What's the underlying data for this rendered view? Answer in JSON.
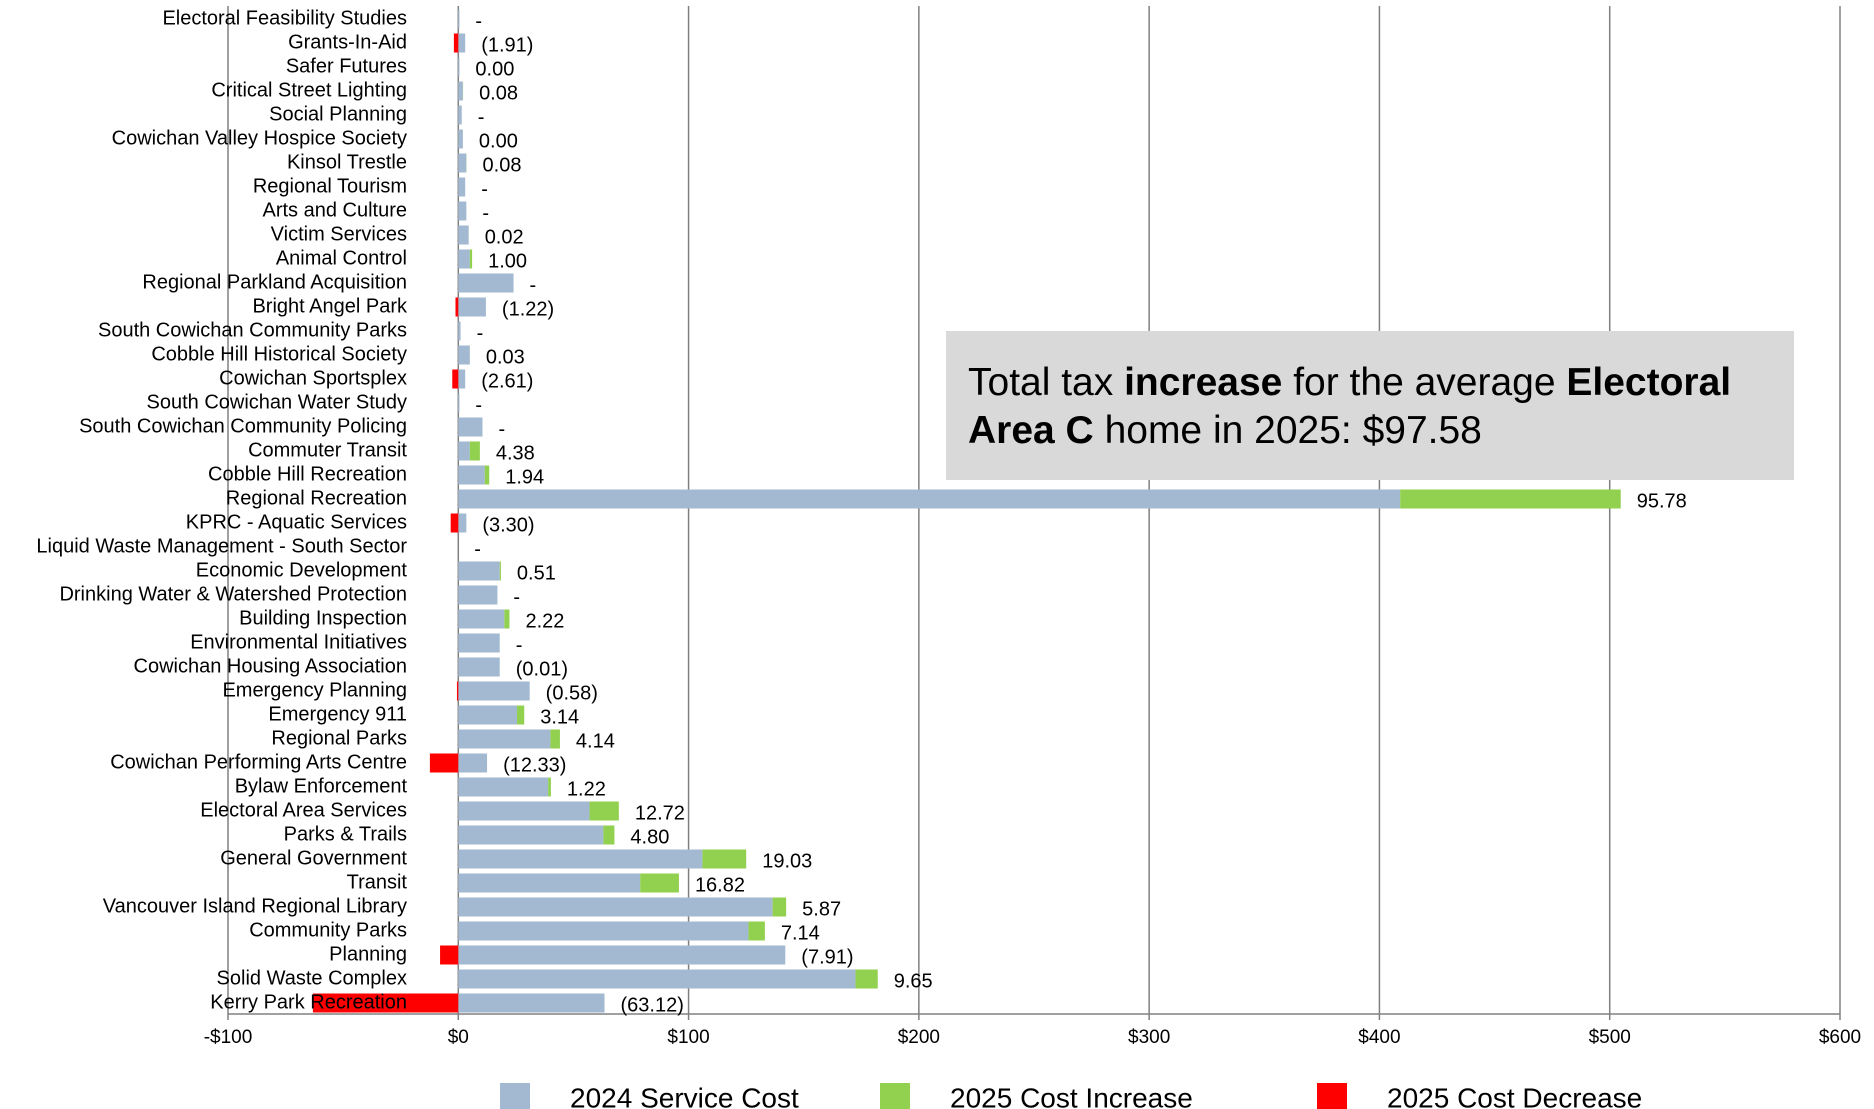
{
  "chart_data": {
    "type": "hbar_stacked",
    "categories": [
      "Electoral Feasibility Studies",
      "Grants-In-Aid",
      "Safer Futures",
      "Critical Street Lighting",
      "Social Planning",
      "Cowichan Valley Hospice Society",
      "Kinsol Trestle",
      "Regional Tourism",
      "Arts and Culture",
      "Victim Services",
      "Animal Control",
      "Regional Parkland Acquisition",
      "Bright Angel Park",
      "South Cowichan Community Parks",
      "Cobble Hill Historical Society",
      "Cowichan Sportsplex",
      "South Cowichan Water Study",
      "South Cowichan Community Policing",
      "Commuter Transit",
      "Cobble Hill Recreation",
      "Regional Recreation",
      "KPRC - Aquatic Services",
      "Liquid Waste Management - South Sector",
      "Economic Development",
      "Drinking Water & Watershed Protection",
      "Building Inspection",
      "Environmental Initiatives",
      "Cowichan Housing Association",
      "Emergency Planning",
      "Emergency 911",
      "Regional Parks",
      "Cowichan Performing Arts Centre",
      "Bylaw Enforcement",
      "Electoral Area Services",
      "Parks & Trails",
      "General Government",
      "Transit",
      "Vancouver Island Regional Library",
      "Community Parks",
      "Planning",
      "Solid Waste Complex",
      "Kerry Park Recreation"
    ],
    "series": [
      {
        "name": "2024 Service Cost",
        "color": "#a3b9d1",
        "values": [
          0.5,
          3,
          0.5,
          2,
          1.5,
          2,
          3.5,
          3,
          3.5,
          4.5,
          5,
          24,
          12,
          1,
          5,
          3,
          0.5,
          10.5,
          5,
          11.5,
          409,
          3.5,
          0,
          18,
          17,
          20,
          18,
          18,
          31,
          25.5,
          40,
          12.5,
          39,
          57,
          63,
          106,
          79,
          136.5,
          126,
          142,
          172.5,
          63.5
        ]
      },
      {
        "name": "2025 Cost Increase",
        "color": "#92d050",
        "values": [
          0,
          0,
          0,
          0.08,
          0,
          0,
          0.08,
          0,
          0,
          0.02,
          1,
          0,
          0,
          0,
          0.03,
          0,
          0,
          0,
          4.38,
          1.94,
          95.78,
          0,
          0,
          0.51,
          0,
          2.22,
          0,
          0,
          0,
          3.14,
          4.14,
          0,
          1.22,
          12.72,
          4.8,
          19.03,
          16.82,
          5.87,
          7.14,
          0,
          9.65,
          0
        ]
      },
      {
        "name": "2025 Cost Decrease",
        "color": "#ff0000",
        "values": [
          0,
          -1.91,
          0,
          0,
          0,
          0,
          0,
          0,
          0,
          0,
          0,
          0,
          -1.22,
          0,
          0,
          -2.61,
          0,
          0,
          0,
          0,
          0,
          -3.3,
          0,
          0,
          0,
          0,
          0,
          -0.01,
          -0.58,
          0,
          0,
          -12.33,
          0,
          0,
          0,
          0,
          0,
          0,
          0,
          -7.91,
          0,
          -63.12
        ]
      }
    ],
    "data_labels": {
      "values": [
        0,
        -1.91,
        0,
        0.08,
        0,
        0,
        0.08,
        0,
        0,
        0.02,
        1,
        0,
        -1.22,
        0,
        0.03,
        -2.61,
        0,
        0,
        4.38,
        1.94,
        95.78,
        -3.3,
        0,
        0.51,
        0,
        2.22,
        0,
        -0.01,
        -0.58,
        3.14,
        4.14,
        -12.33,
        1.22,
        12.72,
        4.8,
        19.03,
        16.82,
        5.87,
        7.14,
        -7.91,
        9.65,
        -63.12
      ],
      "value_labels": [
        "-",
        "(1.91)",
        "0.00",
        "0.08",
        "-",
        "0.00",
        "0.08",
        "-",
        "-",
        "0.02",
        "1.00",
        "-",
        "(1.22)",
        "-",
        "0.03",
        "(2.61)",
        "-",
        "-",
        "4.38",
        "1.94",
        "95.78",
        "(3.30)",
        "-",
        "0.51",
        "-",
        "2.22",
        "-",
        "(0.01)",
        "(0.58)",
        "3.14",
        "4.14",
        "(12.33)",
        "1.22",
        "12.72",
        "4.80",
        "19.03",
        "16.82",
        "5.87",
        "7.14",
        "(7.91)",
        "9.65",
        "(63.12)"
      ]
    },
    "xlim": [
      -100,
      600
    ],
    "xticks": [
      {
        "value": -100,
        "label": "-$100"
      },
      {
        "value": 0,
        "label": "$0"
      },
      {
        "value": 100,
        "label": "$100"
      },
      {
        "value": 200,
        "label": "$200"
      },
      {
        "value": 300,
        "label": "$300"
      },
      {
        "value": 400,
        "label": "$400"
      },
      {
        "value": 500,
        "label": "$500"
      },
      {
        "value": 600,
        "label": "$600"
      }
    ],
    "grid": true,
    "legend": "bottom",
    "annotation": [
      {
        "text": "Total tax ",
        "bold": false
      },
      {
        "text": "increase",
        "bold": true
      },
      {
        "text": " for the average ",
        "bold": false
      },
      {
        "text": "Electoral Area C",
        "bold": true
      },
      {
        "text": " home in 2025: $97.58",
        "bold": false
      }
    ]
  }
}
